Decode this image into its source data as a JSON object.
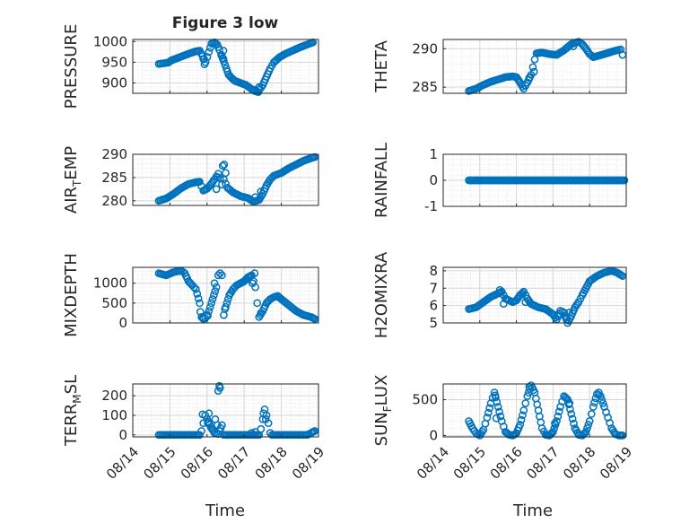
{
  "figure_title": "Figure 3 low",
  "shared_x": {
    "xlabel": "Time",
    "tick_labels": [
      "08/14",
      "08/15",
      "08/16",
      "08/17",
      "08/18",
      "08/19"
    ],
    "xlim": [
      0,
      5
    ]
  },
  "colors": {
    "marker": "#0072BD",
    "axis": "#262626",
    "grid": "#DFDFDF",
    "background": "#FFFFFF"
  },
  "chart_data": [
    {
      "type": "scatter",
      "ylabel": "PRESSURE",
      "ylim": [
        875,
        1005
      ],
      "yticks": [
        900,
        950,
        1000
      ],
      "show_xticks": false,
      "anchors": [
        [
          0.7,
          946
        ],
        [
          0.95,
          949
        ],
        [
          1.05,
          955
        ],
        [
          1.2,
          960
        ],
        [
          1.4,
          967
        ],
        [
          1.55,
          972
        ],
        [
          1.68,
          976
        ],
        [
          1.8,
          978
        ],
        [
          1.88,
          965
        ],
        [
          1.96,
          950
        ],
        [
          2.05,
          975
        ],
        [
          2.12,
          995
        ],
        [
          2.2,
          998
        ],
        [
          2.27,
          993
        ],
        [
          2.33,
          980
        ],
        [
          2.38,
          968
        ],
        [
          2.45,
          952
        ],
        [
          2.52,
          935
        ],
        [
          2.58,
          920
        ],
        [
          2.65,
          913
        ],
        [
          2.75,
          905
        ],
        [
          2.9,
          900
        ],
        [
          3.05,
          895
        ],
        [
          3.2,
          885
        ],
        [
          3.3,
          880
        ],
        [
          3.38,
          878
        ],
        [
          3.42,
          885
        ],
        [
          3.5,
          895
        ],
        [
          3.6,
          915
        ],
        [
          3.7,
          935
        ],
        [
          3.8,
          950
        ],
        [
          3.95,
          962
        ],
        [
          4.1,
          970
        ],
        [
          4.3,
          978
        ],
        [
          4.5,
          986
        ],
        [
          4.7,
          993
        ],
        [
          4.85,
          998
        ]
      ],
      "outliers": [
        [
          1.9,
          958
        ],
        [
          1.93,
          945
        ],
        [
          2.44,
          978
        ],
        [
          2.4,
          965
        ],
        [
          2.44,
          958
        ],
        [
          3.4,
          890
        ],
        [
          3.28,
          883
        ]
      ]
    },
    {
      "type": "scatter",
      "ylabel": "THETA",
      "ylim": [
        284.2,
        291.2
      ],
      "yticks": [
        285,
        290
      ],
      "show_xticks": false,
      "anchors": [
        [
          0.7,
          284.5
        ],
        [
          0.9,
          284.8
        ],
        [
          1.1,
          285.3
        ],
        [
          1.3,
          285.7
        ],
        [
          1.5,
          286.0
        ],
        [
          1.7,
          286.3
        ],
        [
          1.9,
          286.4
        ],
        [
          2.0,
          286.3
        ],
        [
          2.1,
          285.6
        ],
        [
          2.2,
          284.8
        ],
        [
          2.3,
          285.6
        ],
        [
          2.4,
          286.6
        ],
        [
          2.45,
          287.6
        ],
        [
          2.5,
          288.6
        ],
        [
          2.55,
          289.4
        ],
        [
          2.7,
          289.5
        ],
        [
          2.9,
          289.3
        ],
        [
          3.1,
          289.2
        ],
        [
          3.3,
          289.8
        ],
        [
          3.5,
          290.6
        ],
        [
          3.7,
          290.9
        ],
        [
          3.8,
          290.6
        ],
        [
          3.9,
          290.0
        ],
        [
          4.0,
          289.3
        ],
        [
          4.1,
          288.9
        ],
        [
          4.25,
          289.1
        ],
        [
          4.4,
          289.3
        ],
        [
          4.6,
          289.6
        ],
        [
          4.75,
          289.8
        ],
        [
          4.85,
          289.9
        ],
        [
          4.9,
          289.2
        ]
      ],
      "outliers": [
        [
          2.35,
          286.2
        ],
        [
          2.48,
          287.0
        ],
        [
          3.55,
          290.3
        ]
      ]
    },
    {
      "type": "scatter",
      "ylabel": "AIR_TEMP",
      "ylabel_parts": [
        "AIR",
        "T",
        "EMP"
      ],
      "ylim": [
        279,
        290
      ],
      "yticks": [
        280,
        285,
        290
      ],
      "show_xticks": false,
      "anchors": [
        [
          0.7,
          280.0
        ],
        [
          0.9,
          280.5
        ],
        [
          1.1,
          281.5
        ],
        [
          1.3,
          282.7
        ],
        [
          1.5,
          283.6
        ],
        [
          1.7,
          284.0
        ],
        [
          1.8,
          284.1
        ],
        [
          1.9,
          282.2
        ],
        [
          2.0,
          282.6
        ],
        [
          2.1,
          283.5
        ],
        [
          2.2,
          284.6
        ],
        [
          2.3,
          285.8
        ],
        [
          2.35,
          284.8
        ],
        [
          2.4,
          283.5
        ],
        [
          2.45,
          284.6
        ],
        [
          2.55,
          282.8
        ],
        [
          2.7,
          281.8
        ],
        [
          2.9,
          281.0
        ],
        [
          3.1,
          280.6
        ],
        [
          3.25,
          279.8
        ],
        [
          3.4,
          280.2
        ],
        [
          3.5,
          281.5
        ],
        [
          3.6,
          283.3
        ],
        [
          3.7,
          284.6
        ],
        [
          3.8,
          285.4
        ],
        [
          4.0,
          286.0
        ],
        [
          4.2,
          287.0
        ],
        [
          4.4,
          287.8
        ],
        [
          4.6,
          288.6
        ],
        [
          4.8,
          289.2
        ],
        [
          4.9,
          289.4
        ]
      ],
      "outliers": [
        [
          2.42,
          287.5
        ],
        [
          2.46,
          287.8
        ],
        [
          2.5,
          286.0
        ],
        [
          2.3,
          285.0
        ],
        [
          2.25,
          282.5
        ],
        [
          3.3,
          280.8
        ],
        [
          3.45,
          282.0
        ]
      ]
    },
    {
      "type": "scatter",
      "ylabel": "RAINFALL",
      "ylim": [
        -1,
        1
      ],
      "yticks": [
        -1,
        0,
        1
      ],
      "show_xticks": false,
      "anchors": [
        [
          0.7,
          0
        ],
        [
          4.95,
          0
        ]
      ],
      "outliers": []
    },
    {
      "type": "scatter",
      "ylabel": "MIXDEPTH",
      "ylim": [
        0,
        1400
      ],
      "yticks": [
        0,
        500,
        1000
      ],
      "show_xticks": false,
      "anchors": [
        [
          0.7,
          1250
        ],
        [
          0.9,
          1200
        ],
        [
          1.1,
          1280
        ],
        [
          1.3,
          1320
        ],
        [
          1.4,
          1250
        ],
        [
          1.5,
          1050
        ],
        [
          1.6,
          950
        ],
        [
          1.7,
          850
        ],
        [
          1.8,
          500
        ],
        [
          1.85,
          150
        ],
        [
          1.9,
          100
        ],
        [
          1.95,
          120
        ],
        [
          2.05,
          300
        ],
        [
          2.15,
          600
        ],
        [
          2.25,
          900
        ],
        [
          2.3,
          1200
        ],
        [
          2.35,
          1250
        ],
        [
          2.4,
          1200
        ],
        [
          2.45,
          200
        ],
        [
          2.5,
          400
        ],
        [
          2.6,
          700
        ],
        [
          2.7,
          850
        ],
        [
          2.8,
          950
        ],
        [
          2.9,
          1000
        ],
        [
          3.0,
          1050
        ],
        [
          3.1,
          1150
        ],
        [
          3.2,
          1200
        ],
        [
          3.3,
          900
        ],
        [
          3.35,
          500
        ],
        [
          3.4,
          150
        ],
        [
          3.5,
          300
        ],
        [
          3.6,
          500
        ],
        [
          3.7,
          600
        ],
        [
          3.8,
          650
        ],
        [
          3.9,
          680
        ],
        [
          4.0,
          600
        ],
        [
          4.2,
          450
        ],
        [
          4.4,
          300
        ],
        [
          4.6,
          200
        ],
        [
          4.8,
          150
        ],
        [
          4.9,
          100
        ]
      ],
      "outliers": [
        [
          1.82,
          280
        ],
        [
          1.88,
          120
        ],
        [
          2.02,
          180
        ],
        [
          2.2,
          1000
        ],
        [
          2.48,
          350
        ],
        [
          3.05,
          1100
        ],
        [
          3.22,
          1000
        ],
        [
          3.28,
          1250
        ],
        [
          3.45,
          250
        ]
      ]
    },
    {
      "type": "scatter",
      "ylabel": "H2OMIXRA",
      "ylim": [
        5,
        8.2
      ],
      "yticks": [
        5,
        6,
        7,
        8
      ],
      "show_xticks": false,
      "anchors": [
        [
          0.7,
          5.8
        ],
        [
          0.9,
          5.9
        ],
        [
          1.1,
          6.2
        ],
        [
          1.3,
          6.5
        ],
        [
          1.5,
          6.7
        ],
        [
          1.6,
          6.8
        ],
        [
          1.7,
          6.4
        ],
        [
          1.8,
          6.3
        ],
        [
          1.9,
          6.2
        ],
        [
          2.0,
          6.3
        ],
        [
          2.1,
          6.6
        ],
        [
          2.2,
          6.8
        ],
        [
          2.3,
          6.4
        ],
        [
          2.4,
          6.1
        ],
        [
          2.6,
          5.9
        ],
        [
          2.8,
          5.8
        ],
        [
          3.0,
          5.5
        ],
        [
          3.1,
          5.2
        ],
        [
          3.2,
          5.7
        ],
        [
          3.3,
          5.6
        ],
        [
          3.4,
          5.0
        ],
        [
          3.5,
          5.4
        ],
        [
          3.6,
          5.9
        ],
        [
          3.7,
          6.2
        ],
        [
          3.8,
          6.6
        ],
        [
          3.9,
          7.0
        ],
        [
          4.0,
          7.4
        ],
        [
          4.2,
          7.7
        ],
        [
          4.4,
          7.9
        ],
        [
          4.6,
          8.0
        ],
        [
          4.75,
          7.9
        ],
        [
          4.9,
          7.7
        ]
      ],
      "outliers": [
        [
          1.55,
          6.9
        ],
        [
          1.65,
          6.1
        ],
        [
          2.25,
          6.2
        ],
        [
          3.15,
          5.4
        ],
        [
          3.35,
          5.3
        ],
        [
          3.45,
          5.6
        ]
      ]
    },
    {
      "type": "scatter",
      "ylabel": "TERR_MSL",
      "ylabel_parts": [
        "TERR",
        "M",
        "SL"
      ],
      "ylim": [
        -10,
        260
      ],
      "yticks": [
        0,
        100,
        200
      ],
      "show_xticks": true,
      "anchors": [
        [
          0.7,
          0
        ],
        [
          1.8,
          0
        ],
        [
          1.85,
          20
        ],
        [
          1.9,
          60
        ],
        [
          1.95,
          100
        ],
        [
          2.0,
          80
        ],
        [
          2.1,
          40
        ],
        [
          2.2,
          10
        ],
        [
          2.3,
          5
        ],
        [
          2.4,
          50
        ],
        [
          2.45,
          0
        ],
        [
          3.4,
          0
        ],
        [
          3.45,
          30
        ],
        [
          3.5,
          80
        ],
        [
          3.55,
          130
        ],
        [
          3.6,
          100
        ],
        [
          3.65,
          60
        ],
        [
          3.7,
          10
        ],
        [
          3.75,
          0
        ],
        [
          4.7,
          0
        ],
        [
          4.8,
          10
        ],
        [
          4.9,
          20
        ]
      ],
      "outliers": [
        [
          1.88,
          105
        ],
        [
          2.02,
          60
        ],
        [
          2.05,
          110
        ],
        [
          2.15,
          30
        ],
        [
          2.22,
          80
        ],
        [
          2.28,
          50
        ],
        [
          2.3,
          225
        ],
        [
          2.35,
          240
        ],
        [
          2.33,
          250
        ],
        [
          3.52,
          110
        ],
        [
          3.58,
          80
        ],
        [
          3.2,
          10
        ],
        [
          3.3,
          15
        ]
      ]
    },
    {
      "type": "scatter",
      "ylabel": "SUN_FLUX",
      "ylabel_parts": [
        "SUN",
        "F",
        "LUX"
      ],
      "ylim": [
        -20,
        720
      ],
      "yticks": [
        0,
        500
      ],
      "show_xticks": true,
      "anchors": [
        [
          0.7,
          200
        ],
        [
          0.8,
          100
        ],
        [
          0.9,
          30
        ],
        [
          1.0,
          0
        ],
        [
          1.1,
          80
        ],
        [
          1.2,
          250
        ],
        [
          1.3,
          450
        ],
        [
          1.4,
          600
        ],
        [
          1.5,
          400
        ],
        [
          1.6,
          200
        ],
        [
          1.7,
          50
        ],
        [
          1.8,
          10
        ],
        [
          1.9,
          0
        ],
        [
          2.0,
          30
        ],
        [
          2.1,
          150
        ],
        [
          2.2,
          350
        ],
        [
          2.3,
          550
        ],
        [
          2.4,
          700
        ],
        [
          2.5,
          600
        ],
        [
          2.6,
          350
        ],
        [
          2.7,
          100
        ],
        [
          2.8,
          10
        ],
        [
          2.9,
          0
        ],
        [
          3.0,
          50
        ],
        [
          3.1,
          200
        ],
        [
          3.2,
          400
        ],
        [
          3.3,
          550
        ],
        [
          3.4,
          500
        ],
        [
          3.5,
          300
        ],
        [
          3.6,
          100
        ],
        [
          3.7,
          10
        ],
        [
          3.8,
          0
        ],
        [
          3.9,
          50
        ],
        [
          4.0,
          200
        ],
        [
          4.1,
          400
        ],
        [
          4.2,
          580
        ],
        [
          4.3,
          550
        ],
        [
          4.4,
          400
        ],
        [
          4.5,
          250
        ],
        [
          4.6,
          100
        ],
        [
          4.7,
          20
        ],
        [
          4.8,
          0
        ],
        [
          4.9,
          0
        ]
      ],
      "outliers": [
        [
          1.42,
          560
        ],
        [
          1.45,
          240
        ],
        [
          2.35,
          680
        ],
        [
          3.05,
          170
        ],
        [
          3.45,
          450
        ],
        [
          4.25,
          600
        ]
      ]
    }
  ]
}
